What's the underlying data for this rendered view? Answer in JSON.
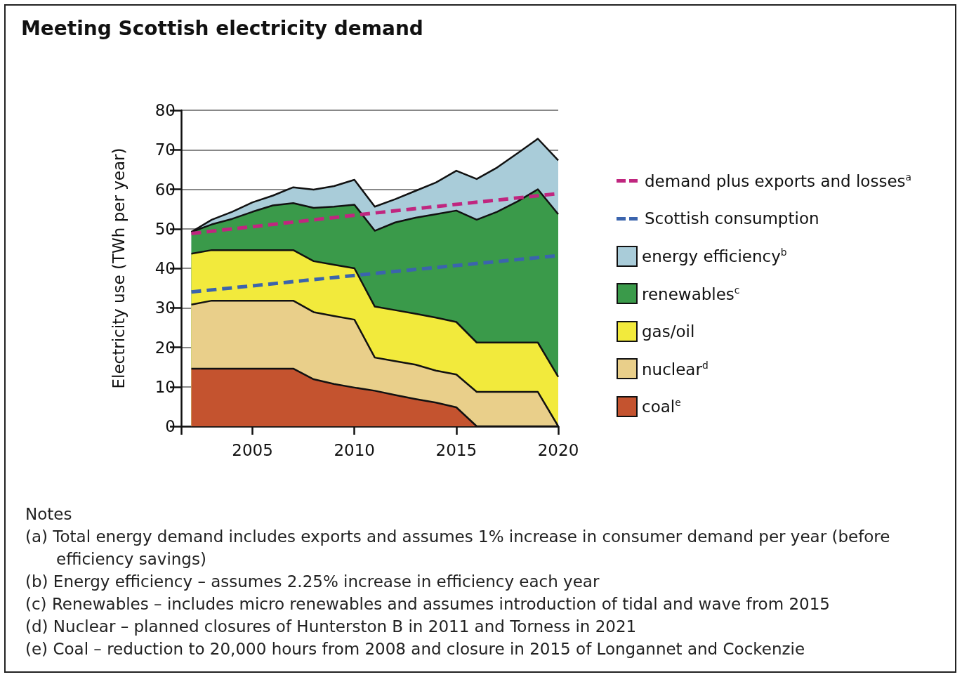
{
  "chart_data": {
    "type": "area",
    "stacked": true,
    "title": "Meeting Scottish electricity demand",
    "ylabel": "Electricity use (TWh per year)",
    "x": [
      2002,
      2003,
      2004,
      2005,
      2006,
      2007,
      2008,
      2009,
      2010,
      2011,
      2012,
      2013,
      2014,
      2015,
      2016,
      2017,
      2018,
      2019,
      2020
    ],
    "xlim": [
      2001.5,
      2020
    ],
    "xticks": [
      {
        "value": 2001.5,
        "label": null
      },
      2005,
      2010,
      2015,
      2020
    ],
    "ylim": [
      0,
      80
    ],
    "yticks": [
      0,
      10,
      20,
      30,
      40,
      50,
      60,
      70,
      80
    ],
    "grid": "y",
    "legend": "right",
    "series": [
      {
        "name": "coal$^{e}$",
        "color": "#c4532f",
        "values": [
          14.6,
          14.6,
          14.6,
          14.6,
          14.6,
          14.6,
          11.9,
          10.7,
          9.8,
          9.0,
          7.9,
          6.9,
          6.0,
          4.8,
          0,
          0,
          0,
          0,
          0
        ]
      },
      {
        "name": "nuclear$^{d}$",
        "color": "#e9cf8a",
        "values": [
          16.2,
          17.2,
          17.2,
          17.2,
          17.2,
          17.2,
          17.0,
          17.2,
          17.2,
          8.4,
          8.6,
          8.7,
          8.1,
          8.3,
          8.7,
          8.7,
          8.7,
          8.7,
          0
        ]
      },
      {
        "name": "gas/oil",
        "color": "#f2ea3c",
        "values": [
          12.9,
          12.8,
          12.8,
          12.8,
          12.8,
          12.8,
          12.9,
          13.0,
          13.0,
          12.9,
          12.9,
          12.9,
          13.4,
          13.3,
          12.5,
          12.5,
          12.5,
          12.5,
          12.5
        ]
      },
      {
        "name": "renewables$^{c}$",
        "color": "#3a9a4a",
        "values": [
          5.5,
          6.5,
          7.9,
          9.7,
          11.3,
          11.9,
          13.5,
          14.7,
          16.1,
          19.2,
          22.2,
          24.3,
          26.2,
          28.2,
          31.1,
          33.1,
          35.7,
          38.8,
          41.2
        ]
      },
      {
        "name": "energy efficiency$^{b}$",
        "color": "#a9ccd9",
        "values": [
          0,
          1.2,
          1.8,
          2.4,
          2.5,
          4.0,
          4.6,
          5.2,
          6.3,
          6.1,
          5.9,
          6.8,
          8.0,
          10.1,
          10.3,
          11.2,
          12.2,
          12.8,
          13.6
        ]
      },
      {
        "name": "demand plus exports and losses$^{a}$",
        "type": "line",
        "line_style": "dashed",
        "color": "#c0267f",
        "x": [
          2002,
          2011,
          2020
        ],
        "values": [
          48.8,
          54.0,
          58.9
        ]
      },
      {
        "name": "Scottish consumption",
        "type": "line",
        "line_style": "dashed",
        "color": "#3b64ad",
        "x": [
          2002,
          2011,
          2020
        ],
        "values": [
          34.0,
          38.7,
          43.2
        ]
      }
    ],
    "annotations": [
      "Notes",
      "(a) Total energy demand includes exports and assumes 1% increase in consumer demand  per year (before efficiency savings)",
      "(b) Energy efficiency – assumes 2.25% increase in efficiency each year",
      "(c) Renewables – includes micro renewables and assumes introduction of tidal and wave from 2015",
      "(d) Nuclear – planned closures of Hunterston B in 2011 and Torness in 2021",
      "(e) Coal – reduction to 20,000 hours from 2008 and closure in 2015 of Longannet and Cockenzie"
    ]
  }
}
